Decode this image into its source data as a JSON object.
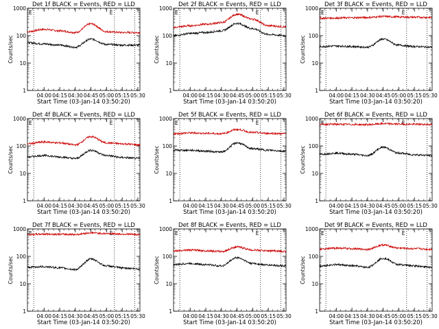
{
  "chart_data": {
    "type": "line",
    "ylabel": "Counts/sec",
    "xlabel": "Start Time (03-Jan-14 03:50:20)",
    "yscale": "log",
    "ylim": [
      1,
      1000
    ],
    "y_ticks": [
      "1",
      "10",
      "100",
      "1000"
    ],
    "x_ticks": [
      "04:00",
      "04:15",
      "04:30",
      "04:45",
      "05:00",
      "05:15",
      "05:30"
    ],
    "x_range_minutes": [
      -6,
      102
    ],
    "x_tick_minutes": [
      10,
      25,
      40,
      55,
      70,
      85,
      100
    ],
    "event_markers": [
      {
        "label": "E",
        "minute": 0
      },
      {
        "label": "E",
        "minute": 77.5
      }
    ],
    "dotted_lines_minutes": [
      0,
      77.5,
      97
    ],
    "series_colors": {
      "events": "#000000",
      "lld": "#cc0000"
    },
    "panels": [
      {
        "title": "Det 1f BLACK = Events, RED = LLD",
        "x": [
          -6,
          10,
          25,
          40,
          55,
          70,
          85,
          102
        ],
        "events": [
          55,
          50,
          45,
          38,
          75,
          48,
          45,
          45
        ],
        "lld": [
          140,
          170,
          150,
          130,
          270,
          140,
          130,
          130
        ]
      },
      {
        "title": "Det 2f BLACK = Events, RED = LLD",
        "x": [
          -6,
          10,
          25,
          40,
          55,
          70,
          85,
          102
        ],
        "events": [
          100,
          120,
          130,
          150,
          280,
          180,
          110,
          100
        ],
        "lld": [
          200,
          230,
          260,
          300,
          600,
          400,
          230,
          210
        ]
      },
      {
        "title": "Det 3f BLACK = Events, RED = LLD",
        "x": [
          -6,
          10,
          25,
          40,
          55,
          70,
          85,
          102
        ],
        "events": [
          40,
          42,
          40,
          38,
          75,
          45,
          40,
          38
        ],
        "lld": [
          430,
          440,
          450,
          460,
          500,
          480,
          470,
          460
        ]
      },
      {
        "title": "Det 4f BLACK = Events, RED = LLD",
        "x": [
          -6,
          10,
          25,
          40,
          55,
          70,
          85,
          102
        ],
        "events": [
          40,
          45,
          40,
          35,
          70,
          45,
          38,
          35
        ],
        "lld": [
          120,
          140,
          130,
          110,
          220,
          130,
          120,
          110
        ]
      },
      {
        "title": "Det 5f BLACK = Events, RED = LLD",
        "x": [
          -6,
          10,
          25,
          40,
          55,
          70,
          85,
          102
        ],
        "events": [
          70,
          70,
          65,
          60,
          130,
          80,
          70,
          65
        ],
        "lld": [
          280,
          300,
          290,
          280,
          400,
          310,
          290,
          280
        ]
      },
      {
        "title": "Det 6f BLACK = Events, RED = LLD",
        "x": [
          -6,
          10,
          25,
          40,
          55,
          70,
          85,
          102
        ],
        "events": [
          50,
          55,
          50,
          45,
          90,
          55,
          48,
          45
        ],
        "lld": [
          620,
          620,
          610,
          600,
          650,
          630,
          620,
          610
        ]
      },
      {
        "title": "Det 7f BLACK = Events, RED = LLD",
        "x": [
          -6,
          10,
          25,
          40,
          55,
          70,
          85,
          102
        ],
        "events": [
          40,
          42,
          38,
          33,
          80,
          45,
          38,
          35
        ],
        "lld": [
          620,
          650,
          640,
          630,
          720,
          680,
          650,
          620
        ]
      },
      {
        "title": "Det 8f BLACK = Events, RED = LLD",
        "x": [
          -6,
          10,
          25,
          40,
          55,
          70,
          85,
          102
        ],
        "events": [
          50,
          55,
          50,
          45,
          90,
          55,
          48,
          45
        ],
        "lld": [
          160,
          170,
          160,
          150,
          220,
          170,
          160,
          150
        ]
      },
      {
        "title": "Det 9f BLACK = Events, RED = LLD",
        "x": [
          -6,
          10,
          25,
          40,
          55,
          70,
          85,
          102
        ],
        "events": [
          45,
          50,
          45,
          40,
          85,
          50,
          45,
          40
        ],
        "lld": [
          180,
          200,
          190,
          180,
          260,
          200,
          190,
          180
        ]
      }
    ]
  }
}
